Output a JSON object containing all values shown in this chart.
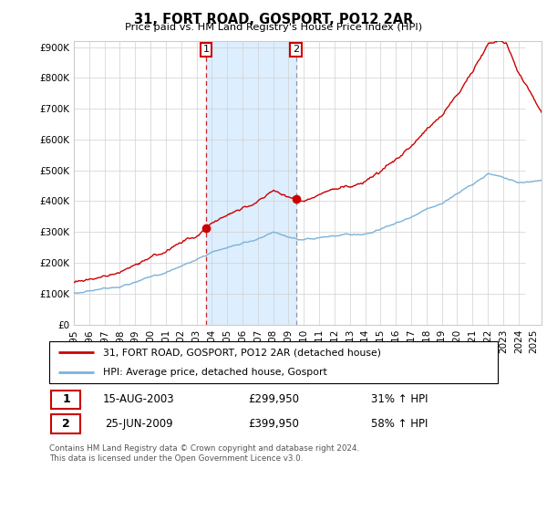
{
  "title": "31, FORT ROAD, GOSPORT, PO12 2AR",
  "subtitle": "Price paid vs. HM Land Registry's House Price Index (HPI)",
  "footnote": "Contains HM Land Registry data © Crown copyright and database right 2024.\nThis data is licensed under the Open Government Licence v3.0.",
  "legend_line1": "31, FORT ROAD, GOSPORT, PO12 2AR (detached house)",
  "legend_line2": "HPI: Average price, detached house, Gosport",
  "purchase1_label": "1",
  "purchase1_date": "15-AUG-2003",
  "purchase1_price": "£299,950",
  "purchase1_hpi": "31% ↑ HPI",
  "purchase2_label": "2",
  "purchase2_date": "25-JUN-2009",
  "purchase2_price": "£399,950",
  "purchase2_hpi": "58% ↑ HPI",
  "hpi_color": "#7ab3d8",
  "price_color": "#cc0000",
  "shaded_color": "#ddeeff",
  "purchase1_year": 2003.62,
  "purchase2_year": 2009.48,
  "ylim_bottom": 0,
  "ylim_top": 920000,
  "xlim_left": 1995.0,
  "xlim_right": 2025.5,
  "hatch_start": 2024.5
}
